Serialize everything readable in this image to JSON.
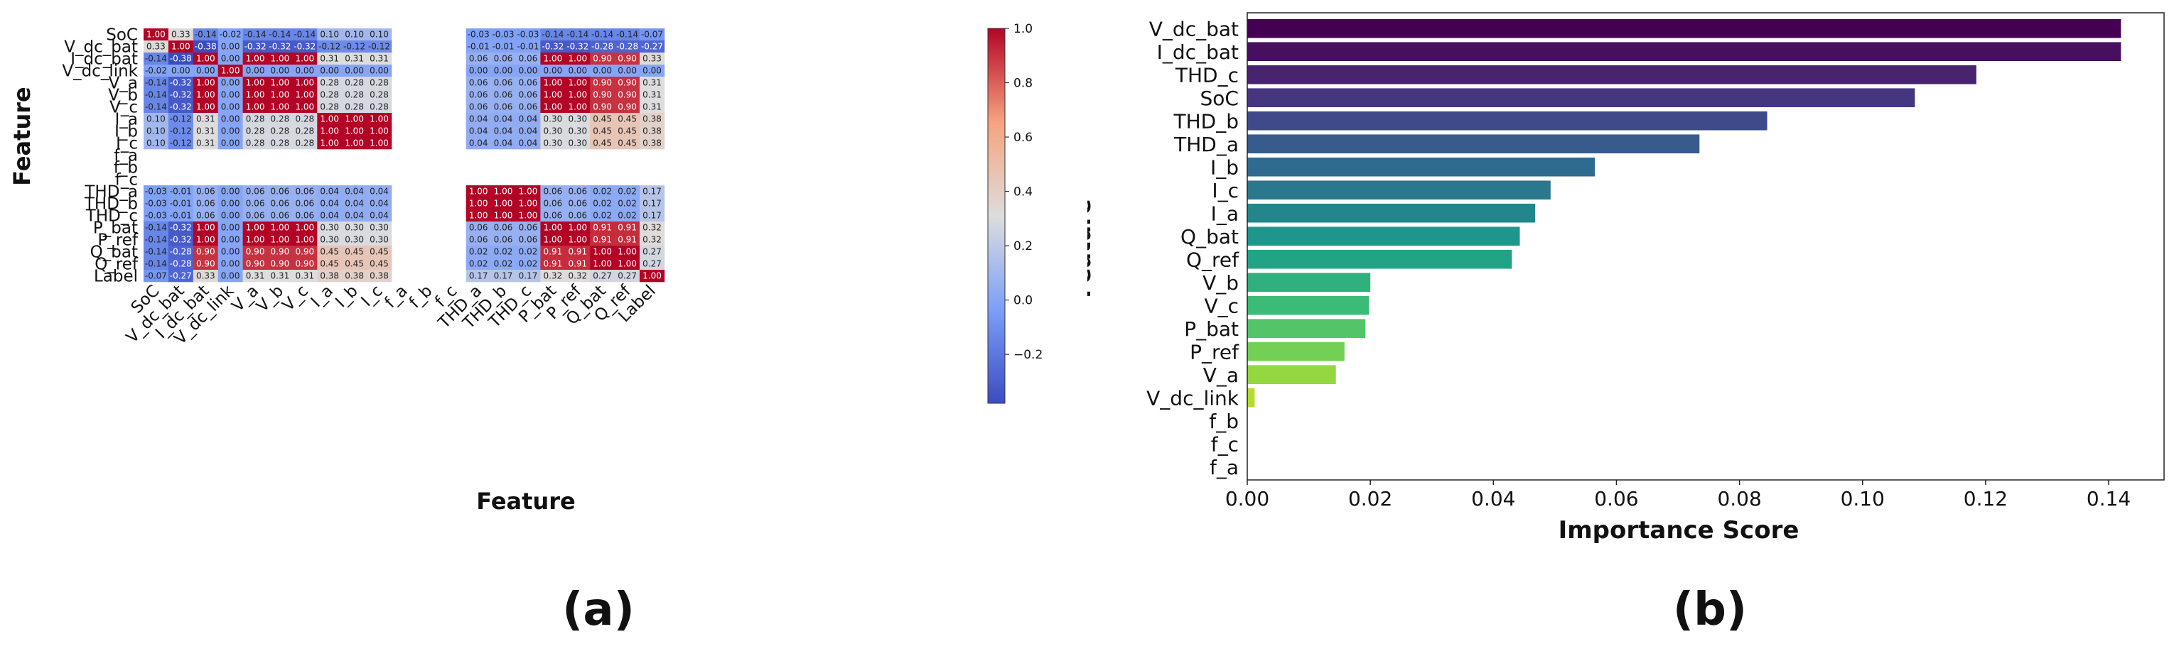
{
  "chart_data": [
    {
      "type": "heatmap",
      "panel_label": "(a)",
      "xlabel": "Feature",
      "ylabel": "Feature",
      "features": [
        "SoC",
        "V_dc_bat",
        "I_dc_bat",
        "V_dc_link",
        "V_a",
        "V_b",
        "V_c",
        "I_a",
        "I_b",
        "I_c",
        "f_a",
        "f_b",
        "f_c",
        "THD_a",
        "THD_b",
        "THD_c",
        "P_bat",
        "P_ref",
        "Q_bat",
        "Q_ref",
        "Label"
      ],
      "matrix": [
        [
          1.0,
          0.33,
          -0.14,
          -0.02,
          -0.14,
          -0.14,
          -0.14,
          0.1,
          0.1,
          0.1,
          null,
          null,
          null,
          -0.03,
          -0.03,
          -0.03,
          -0.14,
          -0.14,
          -0.14,
          -0.14,
          -0.07
        ],
        [
          0.33,
          1.0,
          -0.38,
          -0.0,
          -0.32,
          -0.32,
          -0.32,
          -0.12,
          -0.12,
          -0.12,
          null,
          null,
          null,
          -0.01,
          -0.01,
          -0.01,
          -0.32,
          -0.32,
          -0.28,
          -0.28,
          -0.27
        ],
        [
          -0.14,
          -0.38,
          1.0,
          -0.0,
          1.0,
          1.0,
          1.0,
          0.31,
          0.31,
          0.31,
          null,
          null,
          null,
          0.06,
          0.06,
          0.06,
          1.0,
          1.0,
          0.9,
          0.9,
          0.33
        ],
        [
          -0.02,
          -0.0,
          -0.0,
          1.0,
          -0.0,
          -0.0,
          -0.0,
          -0.0,
          -0.0,
          -0.0,
          null,
          null,
          null,
          0.0,
          0.0,
          0.0,
          -0.0,
          -0.0,
          -0.0,
          -0.0,
          -0.0
        ],
        [
          -0.14,
          -0.32,
          1.0,
          -0.0,
          1.0,
          1.0,
          1.0,
          0.28,
          0.28,
          0.28,
          null,
          null,
          null,
          0.06,
          0.06,
          0.06,
          1.0,
          1.0,
          0.9,
          0.9,
          0.31
        ],
        [
          -0.14,
          -0.32,
          1.0,
          -0.0,
          1.0,
          1.0,
          1.0,
          0.28,
          0.28,
          0.28,
          null,
          null,
          null,
          0.06,
          0.06,
          0.06,
          1.0,
          1.0,
          0.9,
          0.9,
          0.31
        ],
        [
          -0.14,
          -0.32,
          1.0,
          -0.0,
          1.0,
          1.0,
          1.0,
          0.28,
          0.28,
          0.28,
          null,
          null,
          null,
          0.06,
          0.06,
          0.06,
          1.0,
          1.0,
          0.9,
          0.9,
          0.31
        ],
        [
          0.1,
          -0.12,
          0.31,
          -0.0,
          0.28,
          0.28,
          0.28,
          1.0,
          1.0,
          1.0,
          null,
          null,
          null,
          0.04,
          0.04,
          0.04,
          0.3,
          0.3,
          0.45,
          0.45,
          0.38
        ],
        [
          0.1,
          -0.12,
          0.31,
          -0.0,
          0.28,
          0.28,
          0.28,
          1.0,
          1.0,
          1.0,
          null,
          null,
          null,
          0.04,
          0.04,
          0.04,
          0.3,
          0.3,
          0.45,
          0.45,
          0.38
        ],
        [
          0.1,
          -0.12,
          0.31,
          -0.0,
          0.28,
          0.28,
          0.28,
          1.0,
          1.0,
          1.0,
          null,
          null,
          null,
          0.04,
          0.04,
          0.04,
          0.3,
          0.3,
          0.45,
          0.45,
          0.38
        ],
        [
          null,
          null,
          null,
          null,
          null,
          null,
          null,
          null,
          null,
          null,
          null,
          null,
          null,
          null,
          null,
          null,
          null,
          null,
          null,
          null,
          null
        ],
        [
          null,
          null,
          null,
          null,
          null,
          null,
          null,
          null,
          null,
          null,
          null,
          null,
          null,
          null,
          null,
          null,
          null,
          null,
          null,
          null,
          null
        ],
        [
          null,
          null,
          null,
          null,
          null,
          null,
          null,
          null,
          null,
          null,
          null,
          null,
          null,
          null,
          null,
          null,
          null,
          null,
          null,
          null,
          null
        ],
        [
          -0.03,
          -0.01,
          0.06,
          0.0,
          0.06,
          0.06,
          0.06,
          0.04,
          0.04,
          0.04,
          null,
          null,
          null,
          1.0,
          1.0,
          1.0,
          0.06,
          0.06,
          0.02,
          0.02,
          0.17
        ],
        [
          -0.03,
          -0.01,
          0.06,
          0.0,
          0.06,
          0.06,
          0.06,
          0.04,
          0.04,
          0.04,
          null,
          null,
          null,
          1.0,
          1.0,
          1.0,
          0.06,
          0.06,
          0.02,
          0.02,
          0.17
        ],
        [
          -0.03,
          -0.01,
          0.06,
          0.0,
          0.06,
          0.06,
          0.06,
          0.04,
          0.04,
          0.04,
          null,
          null,
          null,
          1.0,
          1.0,
          1.0,
          0.06,
          0.06,
          0.02,
          0.02,
          0.17
        ],
        [
          -0.14,
          -0.32,
          1.0,
          -0.0,
          1.0,
          1.0,
          1.0,
          0.3,
          0.3,
          0.3,
          null,
          null,
          null,
          0.06,
          0.06,
          0.06,
          1.0,
          1.0,
          0.91,
          0.91,
          0.32
        ],
        [
          -0.14,
          -0.32,
          1.0,
          -0.0,
          1.0,
          1.0,
          1.0,
          0.3,
          0.3,
          0.3,
          null,
          null,
          null,
          0.06,
          0.06,
          0.06,
          1.0,
          1.0,
          0.91,
          0.91,
          0.32
        ],
        [
          -0.14,
          -0.28,
          0.9,
          -0.0,
          0.9,
          0.9,
          0.9,
          0.45,
          0.45,
          0.45,
          null,
          null,
          null,
          0.02,
          0.02,
          0.02,
          0.91,
          0.91,
          1.0,
          1.0,
          0.27
        ],
        [
          -0.14,
          -0.28,
          0.9,
          -0.0,
          0.9,
          0.9,
          0.9,
          0.45,
          0.45,
          0.45,
          null,
          null,
          null,
          0.02,
          0.02,
          0.02,
          0.91,
          0.91,
          1.0,
          1.0,
          0.27
        ],
        [
          -0.07,
          -0.27,
          0.33,
          -0.0,
          0.31,
          0.31,
          0.31,
          0.38,
          0.38,
          0.38,
          null,
          null,
          null,
          0.17,
          0.17,
          0.17,
          0.32,
          0.32,
          0.27,
          0.27,
          1.0
        ]
      ],
      "colorbar": {
        "colormap": "coolwarm",
        "vmin": -0.38,
        "vmax": 1.0,
        "ticks": [
          1.0,
          0.8,
          0.6,
          0.4,
          0.2,
          0.0,
          -0.2
        ],
        "tick_labels": [
          "1.0",
          "0.8",
          "0.6",
          "0.4",
          "0.2",
          "0.0",
          "−0.2"
        ]
      }
    },
    {
      "type": "bar",
      "orientation": "horizontal",
      "panel_label": "(b)",
      "xlabel": "Importance Score",
      "ylabel": "Feature",
      "xlim": [
        0.0,
        0.149
      ],
      "xticks": [
        0.0,
        0.02,
        0.04,
        0.06,
        0.08,
        0.1,
        0.12,
        0.14
      ],
      "xtick_labels": [
        "0.00",
        "0.02",
        "0.04",
        "0.06",
        "0.08",
        "0.10",
        "0.12",
        "0.14"
      ],
      "categories": [
        "V_dc_bat",
        "I_dc_bat",
        "THD_c",
        "SoC",
        "THD_b",
        "THD_a",
        "I_b",
        "I_c",
        "I_a",
        "Q_bat",
        "Q_ref",
        "V_b",
        "V_c",
        "P_bat",
        "P_ref",
        "V_a",
        "V_dc_link",
        "f_b",
        "f_c",
        "f_a"
      ],
      "values": [
        0.142,
        0.142,
        0.1185,
        0.1085,
        0.0845,
        0.0735,
        0.0565,
        0.0493,
        0.0468,
        0.0443,
        0.043,
        0.02,
        0.0198,
        0.0192,
        0.0158,
        0.0144,
        0.0012,
        0.0,
        0.0,
        0.0
      ],
      "colors": [
        "#440154",
        "#46105e",
        "#48246f",
        "#453680",
        "#3e4a89",
        "#365b8c",
        "#2f6b8e",
        "#29788e",
        "#23868d",
        "#1f968b",
        "#21a386",
        "#30b07c",
        "#3bbb75",
        "#52c569",
        "#73d055",
        "#94d741",
        "#b4dd2b",
        "#d2e21b",
        "#e8e51e",
        "#fde725"
      ]
    }
  ]
}
